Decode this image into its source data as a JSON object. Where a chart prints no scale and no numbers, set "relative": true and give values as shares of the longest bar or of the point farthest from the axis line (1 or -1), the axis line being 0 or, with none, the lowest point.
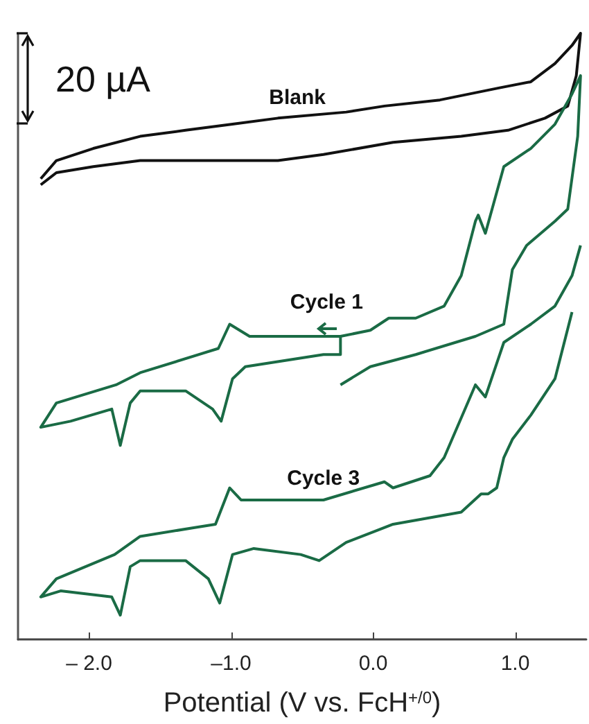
{
  "chart_data": {
    "type": "line",
    "relative": true,
    "xlabel": "Potential (V vs. FcH$^{+/0}$)",
    "xlim": [
      -2.5,
      1.5
    ],
    "xticks": [
      {
        "value": -2,
        "label": "– 2.0"
      },
      {
        "value": -1,
        "label": "–1.0"
      },
      {
        "value": 0,
        "label": "0.0"
      },
      {
        "value": 1,
        "label": "1.0"
      }
    ],
    "grid": false,
    "legend": false,
    "annotations": [
      "20 µA"
    ],
    "series": [
      {
        "name": "Blank",
        "color": "#111111",
        "x": [
          -2.34,
          -2.23,
          -1.97,
          -1.64,
          -1.32,
          -0.99,
          -0.67,
          -0.19,
          0.08,
          0.47,
          0.89,
          1.11,
          1.28,
          1.4,
          1.46,
          1.43,
          1.37,
          1.21,
          0.95,
          0.62,
          0.14,
          -0.35,
          -0.67,
          -0.99,
          -1.32,
          -1.64,
          -1.97,
          -2.23,
          -2.34
        ],
        "values": [
          0.76,
          0.79,
          0.81,
          0.83,
          0.84,
          0.85,
          0.86,
          0.87,
          0.88,
          0.89,
          0.91,
          0.92,
          0.95,
          0.98,
          1.0,
          0.93,
          0.88,
          0.86,
          0.84,
          0.83,
          0.82,
          0.8,
          0.79,
          0.79,
          0.79,
          0.79,
          0.78,
          0.77,
          0.75
        ]
      },
      {
        "name": "Cycle 1",
        "color": "#1a6b45",
        "x": [
          -0.23,
          -0.87,
          -1.01,
          -1.09,
          -1.64,
          -1.81,
          -2.23,
          -2.34,
          -2.13,
          -1.84,
          -1.78,
          -1.71,
          -1.64,
          -1.32,
          -1.13,
          -1.07,
          -0.99,
          -0.9,
          -0.35,
          -0.23,
          -0.23,
          -0.02,
          0.11,
          0.3,
          0.5,
          0.62,
          0.72,
          0.74,
          0.79,
          0.92,
          1.11,
          1.28,
          1.4,
          1.46,
          1.44,
          1.37,
          1.28,
          1.08,
          0.98,
          0.92,
          0.82,
          0.72,
          0.3,
          -0.02,
          -0.23
        ],
        "values": [
          0.5,
          0.5,
          0.52,
          0.48,
          0.44,
          0.42,
          0.39,
          0.35,
          0.36,
          0.38,
          0.32,
          0.39,
          0.41,
          0.41,
          0.38,
          0.36,
          0.43,
          0.45,
          0.47,
          0.47,
          0.5,
          0.51,
          0.53,
          0.53,
          0.55,
          0.6,
          0.69,
          0.7,
          0.67,
          0.78,
          0.81,
          0.85,
          0.9,
          0.93,
          0.83,
          0.71,
          0.69,
          0.65,
          0.61,
          0.52,
          0.51,
          0.5,
          0.47,
          0.45,
          0.42
        ]
      },
      {
        "name": "Cycle 3",
        "color": "#1a6b45",
        "x": [
          1.46,
          1.4,
          1.28,
          1.11,
          0.92,
          0.79,
          0.72,
          0.5,
          0.4,
          0.14,
          0.08,
          -0.35,
          -0.84,
          -0.93,
          -1.01,
          -1.11,
          -1.64,
          -1.82,
          -2.23,
          -2.34,
          -2.2,
          -1.84,
          -1.78,
          -1.71,
          -1.64,
          -1.32,
          -1.16,
          -1.08,
          -0.99,
          -0.84,
          -0.51,
          -0.38,
          -0.19,
          0.14,
          0.62,
          0.76,
          0.81,
          0.87,
          0.92,
          0.98,
          1.11,
          1.28,
          1.4
        ],
        "values": [
          0.65,
          0.6,
          0.55,
          0.52,
          0.49,
          0.4,
          0.42,
          0.3,
          0.27,
          0.25,
          0.26,
          0.23,
          0.23,
          0.23,
          0.25,
          0.19,
          0.17,
          0.14,
          0.1,
          0.07,
          0.08,
          0.07,
          0.04,
          0.12,
          0.13,
          0.13,
          0.1,
          0.06,
          0.14,
          0.15,
          0.14,
          0.13,
          0.16,
          0.19,
          0.21,
          0.24,
          0.24,
          0.25,
          0.3,
          0.33,
          0.37,
          0.43,
          0.54
        ]
      }
    ]
  }
}
